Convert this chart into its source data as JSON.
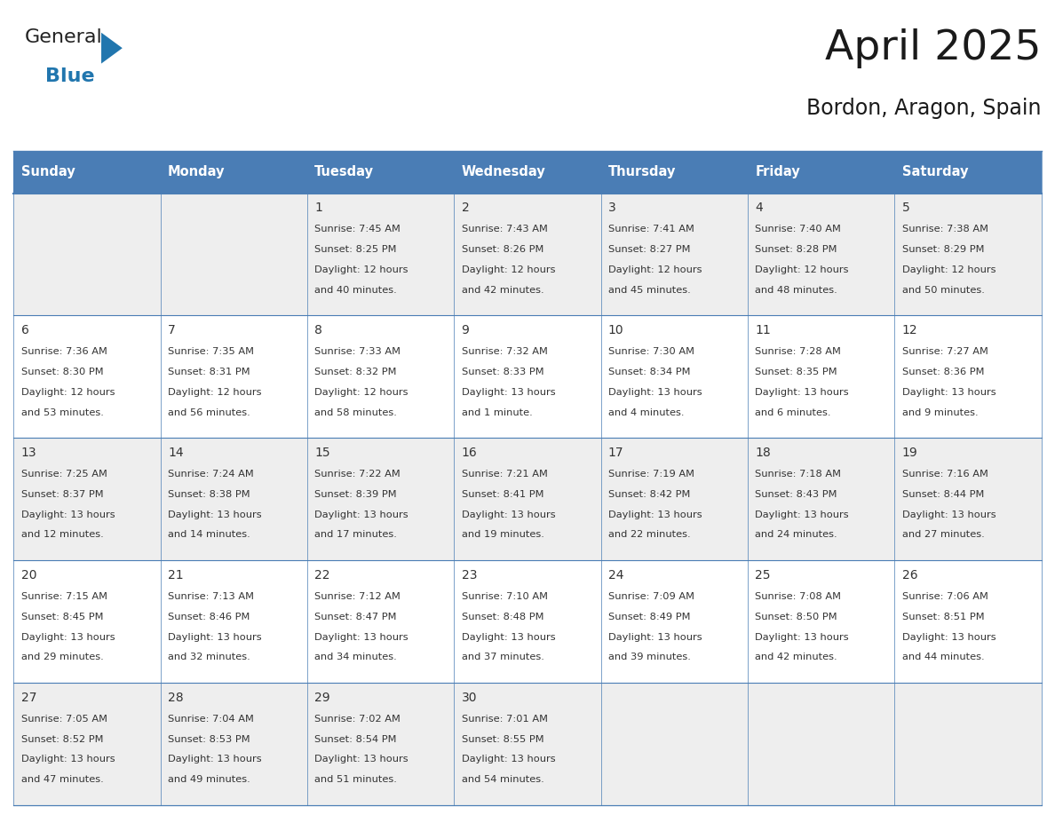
{
  "title": "April 2025",
  "subtitle": "Bordon, Aragon, Spain",
  "header_bg_color": "#4A7DB5",
  "header_text_color": "#FFFFFF",
  "border_color": "#4A7DB5",
  "row_bg_colors": [
    "#EEEEEE",
    "#FFFFFF"
  ],
  "day_headers": [
    "Sunday",
    "Monday",
    "Tuesday",
    "Wednesday",
    "Thursday",
    "Friday",
    "Saturday"
  ],
  "title_color": "#1a1a1a",
  "subtitle_color": "#1a1a1a",
  "text_color": "#333333",
  "days": [
    {
      "row": 0,
      "col": 0,
      "num": "",
      "sunrise": "",
      "sunset": "",
      "daylight_l1": "",
      "daylight_l2": ""
    },
    {
      "row": 0,
      "col": 1,
      "num": "",
      "sunrise": "",
      "sunset": "",
      "daylight_l1": "",
      "daylight_l2": ""
    },
    {
      "row": 0,
      "col": 2,
      "num": "1",
      "sunrise": "7:45 AM",
      "sunset": "8:25 PM",
      "daylight_l1": "Daylight: 12 hours",
      "daylight_l2": "and 40 minutes."
    },
    {
      "row": 0,
      "col": 3,
      "num": "2",
      "sunrise": "7:43 AM",
      "sunset": "8:26 PM",
      "daylight_l1": "Daylight: 12 hours",
      "daylight_l2": "and 42 minutes."
    },
    {
      "row": 0,
      "col": 4,
      "num": "3",
      "sunrise": "7:41 AM",
      "sunset": "8:27 PM",
      "daylight_l1": "Daylight: 12 hours",
      "daylight_l2": "and 45 minutes."
    },
    {
      "row": 0,
      "col": 5,
      "num": "4",
      "sunrise": "7:40 AM",
      "sunset": "8:28 PM",
      "daylight_l1": "Daylight: 12 hours",
      "daylight_l2": "and 48 minutes."
    },
    {
      "row": 0,
      "col": 6,
      "num": "5",
      "sunrise": "7:38 AM",
      "sunset": "8:29 PM",
      "daylight_l1": "Daylight: 12 hours",
      "daylight_l2": "and 50 minutes."
    },
    {
      "row": 1,
      "col": 0,
      "num": "6",
      "sunrise": "7:36 AM",
      "sunset": "8:30 PM",
      "daylight_l1": "Daylight: 12 hours",
      "daylight_l2": "and 53 minutes."
    },
    {
      "row": 1,
      "col": 1,
      "num": "7",
      "sunrise": "7:35 AM",
      "sunset": "8:31 PM",
      "daylight_l1": "Daylight: 12 hours",
      "daylight_l2": "and 56 minutes."
    },
    {
      "row": 1,
      "col": 2,
      "num": "8",
      "sunrise": "7:33 AM",
      "sunset": "8:32 PM",
      "daylight_l1": "Daylight: 12 hours",
      "daylight_l2": "and 58 minutes."
    },
    {
      "row": 1,
      "col": 3,
      "num": "9",
      "sunrise": "7:32 AM",
      "sunset": "8:33 PM",
      "daylight_l1": "Daylight: 13 hours",
      "daylight_l2": "and 1 minute."
    },
    {
      "row": 1,
      "col": 4,
      "num": "10",
      "sunrise": "7:30 AM",
      "sunset": "8:34 PM",
      "daylight_l1": "Daylight: 13 hours",
      "daylight_l2": "and 4 minutes."
    },
    {
      "row": 1,
      "col": 5,
      "num": "11",
      "sunrise": "7:28 AM",
      "sunset": "8:35 PM",
      "daylight_l1": "Daylight: 13 hours",
      "daylight_l2": "and 6 minutes."
    },
    {
      "row": 1,
      "col": 6,
      "num": "12",
      "sunrise": "7:27 AM",
      "sunset": "8:36 PM",
      "daylight_l1": "Daylight: 13 hours",
      "daylight_l2": "and 9 minutes."
    },
    {
      "row": 2,
      "col": 0,
      "num": "13",
      "sunrise": "7:25 AM",
      "sunset": "8:37 PM",
      "daylight_l1": "Daylight: 13 hours",
      "daylight_l2": "and 12 minutes."
    },
    {
      "row": 2,
      "col": 1,
      "num": "14",
      "sunrise": "7:24 AM",
      "sunset": "8:38 PM",
      "daylight_l1": "Daylight: 13 hours",
      "daylight_l2": "and 14 minutes."
    },
    {
      "row": 2,
      "col": 2,
      "num": "15",
      "sunrise": "7:22 AM",
      "sunset": "8:39 PM",
      "daylight_l1": "Daylight: 13 hours",
      "daylight_l2": "and 17 minutes."
    },
    {
      "row": 2,
      "col": 3,
      "num": "16",
      "sunrise": "7:21 AM",
      "sunset": "8:41 PM",
      "daylight_l1": "Daylight: 13 hours",
      "daylight_l2": "and 19 minutes."
    },
    {
      "row": 2,
      "col": 4,
      "num": "17",
      "sunrise": "7:19 AM",
      "sunset": "8:42 PM",
      "daylight_l1": "Daylight: 13 hours",
      "daylight_l2": "and 22 minutes."
    },
    {
      "row": 2,
      "col": 5,
      "num": "18",
      "sunrise": "7:18 AM",
      "sunset": "8:43 PM",
      "daylight_l1": "Daylight: 13 hours",
      "daylight_l2": "and 24 minutes."
    },
    {
      "row": 2,
      "col": 6,
      "num": "19",
      "sunrise": "7:16 AM",
      "sunset": "8:44 PM",
      "daylight_l1": "Daylight: 13 hours",
      "daylight_l2": "and 27 minutes."
    },
    {
      "row": 3,
      "col": 0,
      "num": "20",
      "sunrise": "7:15 AM",
      "sunset": "8:45 PM",
      "daylight_l1": "Daylight: 13 hours",
      "daylight_l2": "and 29 minutes."
    },
    {
      "row": 3,
      "col": 1,
      "num": "21",
      "sunrise": "7:13 AM",
      "sunset": "8:46 PM",
      "daylight_l1": "Daylight: 13 hours",
      "daylight_l2": "and 32 minutes."
    },
    {
      "row": 3,
      "col": 2,
      "num": "22",
      "sunrise": "7:12 AM",
      "sunset": "8:47 PM",
      "daylight_l1": "Daylight: 13 hours",
      "daylight_l2": "and 34 minutes."
    },
    {
      "row": 3,
      "col": 3,
      "num": "23",
      "sunrise": "7:10 AM",
      "sunset": "8:48 PM",
      "daylight_l1": "Daylight: 13 hours",
      "daylight_l2": "and 37 minutes."
    },
    {
      "row": 3,
      "col": 4,
      "num": "24",
      "sunrise": "7:09 AM",
      "sunset": "8:49 PM",
      "daylight_l1": "Daylight: 13 hours",
      "daylight_l2": "and 39 minutes."
    },
    {
      "row": 3,
      "col": 5,
      "num": "25",
      "sunrise": "7:08 AM",
      "sunset": "8:50 PM",
      "daylight_l1": "Daylight: 13 hours",
      "daylight_l2": "and 42 minutes."
    },
    {
      "row": 3,
      "col": 6,
      "num": "26",
      "sunrise": "7:06 AM",
      "sunset": "8:51 PM",
      "daylight_l1": "Daylight: 13 hours",
      "daylight_l2": "and 44 minutes."
    },
    {
      "row": 4,
      "col": 0,
      "num": "27",
      "sunrise": "7:05 AM",
      "sunset": "8:52 PM",
      "daylight_l1": "Daylight: 13 hours",
      "daylight_l2": "and 47 minutes."
    },
    {
      "row": 4,
      "col": 1,
      "num": "28",
      "sunrise": "7:04 AM",
      "sunset": "8:53 PM",
      "daylight_l1": "Daylight: 13 hours",
      "daylight_l2": "and 49 minutes."
    },
    {
      "row": 4,
      "col": 2,
      "num": "29",
      "sunrise": "7:02 AM",
      "sunset": "8:54 PM",
      "daylight_l1": "Daylight: 13 hours",
      "daylight_l2": "and 51 minutes."
    },
    {
      "row": 4,
      "col": 3,
      "num": "30",
      "sunrise": "7:01 AM",
      "sunset": "8:55 PM",
      "daylight_l1": "Daylight: 13 hours",
      "daylight_l2": "and 54 minutes."
    },
    {
      "row": 4,
      "col": 4,
      "num": "",
      "sunrise": "",
      "sunset": "",
      "daylight_l1": "",
      "daylight_l2": ""
    },
    {
      "row": 4,
      "col": 5,
      "num": "",
      "sunrise": "",
      "sunset": "",
      "daylight_l1": "",
      "daylight_l2": ""
    },
    {
      "row": 4,
      "col": 6,
      "num": "",
      "sunrise": "",
      "sunset": "",
      "daylight_l1": "",
      "daylight_l2": ""
    }
  ],
  "num_rows": 5,
  "num_cols": 7,
  "logo_text1": "General",
  "logo_text2": "Blue",
  "logo_color1": "#222222",
  "logo_color2": "#2176AE",
  "logo_triangle_color": "#2176AE",
  "figsize": [
    11.88,
    9.18
  ],
  "dpi": 100
}
